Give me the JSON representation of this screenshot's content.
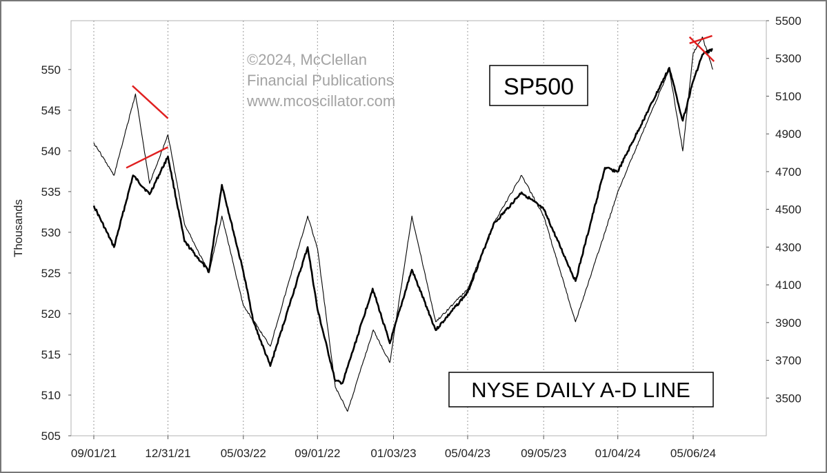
{
  "chart_data": {
    "type": "line",
    "watermark": [
      "©2024, McClellan",
      "Financial Publications",
      "www.mcoscillator.com"
    ],
    "left_axis": {
      "label": "Thousands",
      "ticks": [
        505,
        510,
        515,
        520,
        525,
        530,
        535,
        540,
        545,
        550
      ],
      "range": [
        505,
        556
      ]
    },
    "right_axis": {
      "ticks": [
        3500,
        3700,
        3900,
        4100,
        4300,
        4500,
        4700,
        4900,
        5100,
        5300,
        5500
      ],
      "range": [
        3300,
        5500
      ]
    },
    "x_ticks": [
      "09/01/21",
      "12/31/21",
      "05/03/22",
      "09/01/22",
      "01/03/23",
      "05/04/23",
      "09/05/23",
      "01/04/24",
      "05/06/24"
    ],
    "grid": "vertical dotted lines at x ticks",
    "series": [
      {
        "name": "SP500",
        "axis": "right",
        "color": "#000000",
        "points": [
          [
            "09/01/21",
            4520
          ],
          [
            "10/04/21",
            4300
          ],
          [
            "11/04/21",
            4680
          ],
          [
            "12/01/21",
            4580
          ],
          [
            "12/31/21",
            4780
          ],
          [
            "01/27/22",
            4330
          ],
          [
            "03/08/22",
            4170
          ],
          [
            "03/29/22",
            4630
          ],
          [
            "05/03/22",
            4170
          ],
          [
            "05/20/22",
            3900
          ],
          [
            "06/16/22",
            3670
          ],
          [
            "08/16/22",
            4300
          ],
          [
            "09/01/22",
            3970
          ],
          [
            "09/30/22",
            3590
          ],
          [
            "10/12/22",
            3580
          ],
          [
            "11/30/22",
            4080
          ],
          [
            "12/28/22",
            3790
          ],
          [
            "02/02/23",
            4180
          ],
          [
            "03/13/23",
            3860
          ],
          [
            "05/04/23",
            4060
          ],
          [
            "06/15/23",
            4420
          ],
          [
            "07/31/23",
            4590
          ],
          [
            "09/05/23",
            4500
          ],
          [
            "10/27/23",
            4120
          ],
          [
            "12/14/23",
            4720
          ],
          [
            "01/04/24",
            4700
          ],
          [
            "03/28/24",
            5250
          ],
          [
            "04/19/24",
            4970
          ],
          [
            "05/06/24",
            5180
          ],
          [
            "05/21/24",
            5320
          ],
          [
            "06/07/24",
            5350
          ]
        ]
      },
      {
        "name": "NYSE DAILY A-D LINE",
        "axis": "left",
        "color": "#000000",
        "points": [
          [
            "09/01/21",
            541
          ],
          [
            "10/04/21",
            537
          ],
          [
            "11/08/21",
            547
          ],
          [
            "12/01/21",
            536
          ],
          [
            "12/31/21",
            542
          ],
          [
            "01/27/22",
            531
          ],
          [
            "03/08/22",
            525
          ],
          [
            "03/29/22",
            532
          ],
          [
            "05/03/22",
            521
          ],
          [
            "06/16/22",
            516
          ],
          [
            "08/16/22",
            532
          ],
          [
            "09/01/22",
            528
          ],
          [
            "09/30/22",
            511
          ],
          [
            "10/20/22",
            508
          ],
          [
            "12/01/22",
            518
          ],
          [
            "12/28/22",
            514
          ],
          [
            "02/02/23",
            532
          ],
          [
            "03/13/23",
            519
          ],
          [
            "05/04/23",
            523
          ],
          [
            "06/15/23",
            531
          ],
          [
            "07/31/23",
            537
          ],
          [
            "09/05/23",
            532
          ],
          [
            "10/27/23",
            519
          ],
          [
            "12/14/23",
            530
          ],
          [
            "01/04/24",
            535
          ],
          [
            "03/28/24",
            550
          ],
          [
            "04/19/24",
            540
          ],
          [
            "05/06/24",
            552
          ],
          [
            "05/21/24",
            554
          ],
          [
            "06/07/24",
            550
          ]
        ]
      }
    ],
    "annotation_lines": {
      "color": "#e02020",
      "segments": [
        {
          "on": "SP500",
          "from": [
            "10/24/21",
            4720
          ],
          "to": [
            "12/31/21",
            4830
          ]
        },
        {
          "on": "NYSE DAILY A-D LINE",
          "from": [
            "11/03/21",
            548
          ],
          "to": [
            "12/31/21",
            544
          ]
        },
        {
          "on": "SP500",
          "from": [
            "04/30/24",
            5380
          ],
          "to": [
            "06/06/24",
            5420
          ]
        },
        {
          "on": "NYSE DAILY A-D LINE",
          "from": [
            "04/30/24",
            554
          ],
          "to": [
            "06/09/24",
            551
          ]
        }
      ]
    },
    "labels": {
      "sp500": "SP500",
      "ad_line": "NYSE DAILY A-D LINE"
    }
  }
}
